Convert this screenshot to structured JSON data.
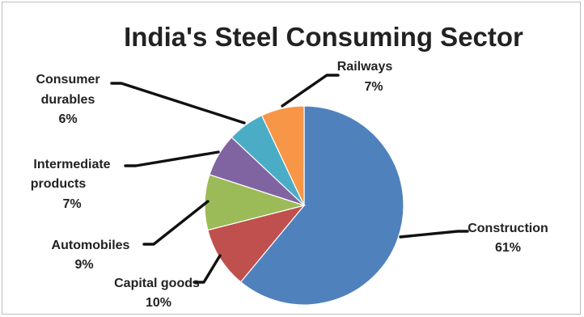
{
  "chart_data": {
    "type": "pie",
    "title": "India's Steel Consuming Sector",
    "slices": [
      {
        "label_lines": [
          "Construction"
        ],
        "value": 61,
        "value_label": "61%",
        "color": "#4F81BD"
      },
      {
        "label_lines": [
          "Capital goods"
        ],
        "value": 10,
        "value_label": "10%",
        "color": "#C0504D"
      },
      {
        "label_lines": [
          "Automobiles"
        ],
        "value": 9,
        "value_label": "9%",
        "color": "#9BBB59"
      },
      {
        "label_lines": [
          "Intermediate",
          "products"
        ],
        "value": 7,
        "value_label": "7%",
        "color": "#8064A2"
      },
      {
        "label_lines": [
          "Consumer",
          "durables"
        ],
        "value": 6,
        "value_label": "6%",
        "color": "#4BACC6"
      },
      {
        "label_lines": [
          "Railways"
        ],
        "value": 7,
        "value_label": "7%",
        "color": "#F79646"
      }
    ],
    "legend": "none",
    "data_labels": "outside with leader lines"
  }
}
